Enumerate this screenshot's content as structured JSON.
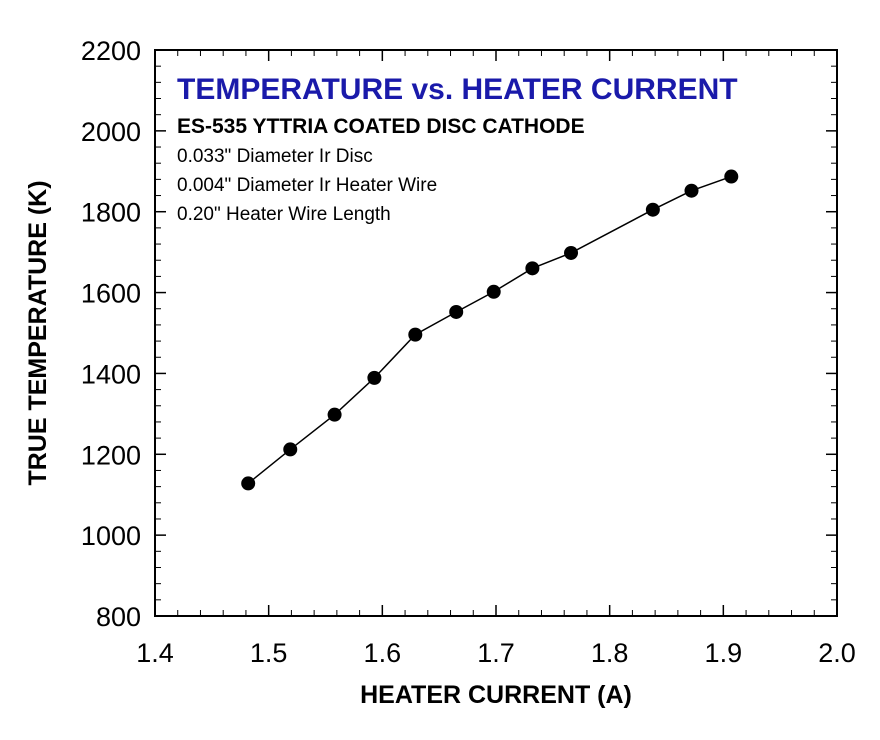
{
  "chart_data": {
    "type": "line",
    "title": "TEMPERATURE vs. HEATER CURRENT",
    "subtitle": "ES-535 YTTRIA COATED DISC CATHODE",
    "annotations": [
      "0.033\" Diameter Ir Disc",
      "0.004\" Diameter Ir Heater Wire",
      "0.20\" Heater Wire Length"
    ],
    "xlabel": "HEATER CURRENT (A)",
    "ylabel": "TRUE TEMPERATURE (K)",
    "xlim": [
      1.4,
      2.0
    ],
    "ylim": [
      800,
      2200
    ],
    "xticks": [
      "1.4",
      "1.5",
      "1.6",
      "1.7",
      "1.8",
      "1.9",
      "2.0"
    ],
    "yticks": [
      "800",
      "1000",
      "1200",
      "1400",
      "1600",
      "1800",
      "2000",
      "2200"
    ],
    "grid": false,
    "series": [
      {
        "x": [
          1.482,
          1.519,
          1.558,
          1.593,
          1.629,
          1.665,
          1.698,
          1.732,
          1.766,
          1.838,
          1.872,
          1.907
        ],
        "y": [
          1128,
          1212,
          1298,
          1389,
          1496,
          1552,
          1602,
          1660,
          1698,
          1805,
          1852,
          1887
        ]
      }
    ],
    "colors": {
      "title": "#1a1aaa",
      "line": "#000000",
      "marker": "#000000"
    }
  }
}
